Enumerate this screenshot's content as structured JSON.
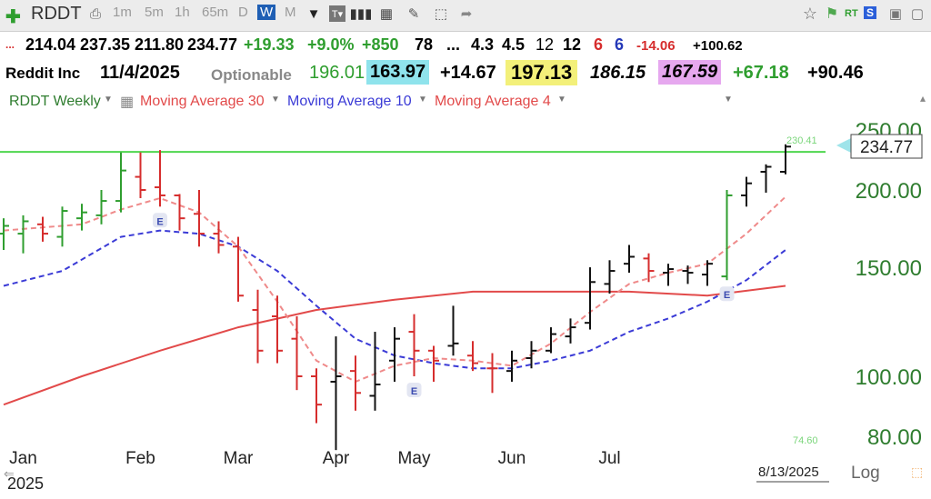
{
  "toolbar": {
    "symbol": "RDDT",
    "intervals": [
      "1m",
      "5m",
      "1h",
      "65m",
      "D",
      "W",
      "M"
    ],
    "active_interval": "W",
    "rt_label": "RT",
    "s_label": "S"
  },
  "quote": {
    "open": "214.04",
    "high": "237.35",
    "low": "211.80",
    "close": "234.77",
    "change": "+19.33",
    "change_pct": "+9.0%",
    "f1": "+850",
    "f2": "78",
    "f3": "...",
    "f4": "4.3",
    "f5": "4.5",
    "f6": "12",
    "f7": "12",
    "f8": "6",
    "f9": "6",
    "f10": "-14.06",
    "f11": "+100.62",
    "dots": "..."
  },
  "info": {
    "name": "Reddit Inc",
    "date": "11/4/2025",
    "optionable": "Optionable",
    "v1": "196.01",
    "v2": "163.97",
    "v3": "+14.67",
    "v4": "197.13",
    "v5": "186.15",
    "v6": "167.59",
    "v7": "+67.18",
    "v8": "+90.46"
  },
  "legend": {
    "series": "RDDT Weekly",
    "ma30": "Moving Average 30",
    "ma10": "Moving Average 10",
    "ma4": "Moving Average 4"
  },
  "colors": {
    "up": "#2f9e2f",
    "down": "#d62d2d",
    "flat": "#111111",
    "ma30": "#e24a4a",
    "ma10": "#3b3bd6",
    "ma4": "#ef8a8a",
    "axis_text": "#2f7d2f",
    "hline": "#4fd64f"
  },
  "chart_data": {
    "type": "line",
    "title": "RDDT Weekly",
    "y_scale": "log",
    "ylim": [
      76,
      270
    ],
    "y_ticks": [
      "250.00",
      "200.00",
      "150.00",
      "100.00",
      "80.00"
    ],
    "x_ticks": [
      "Jan",
      "Feb",
      "Mar",
      "Apr",
      "May",
      "Jun",
      "Jul"
    ],
    "year_label": "2025",
    "last_price_label": "234.77",
    "hline_label": "230.41",
    "hline_value": 230.41,
    "low_label": "74.60",
    "scale_label": "Log",
    "date_label": "8/13/2025",
    "earnings_marker": "E",
    "earnings_weeks": [
      8,
      21,
      37
    ],
    "bars": [
      {
        "w": 0,
        "o": 170,
        "h": 180,
        "l": 160,
        "c": 175,
        "d": "up"
      },
      {
        "w": 1,
        "o": 170,
        "h": 182,
        "l": 158,
        "c": 178,
        "d": "up"
      },
      {
        "w": 2,
        "o": 176,
        "h": 181,
        "l": 165,
        "c": 170,
        "d": "down"
      },
      {
        "w": 3,
        "o": 168,
        "h": 188,
        "l": 162,
        "c": 185,
        "d": "up"
      },
      {
        "w": 4,
        "o": 180,
        "h": 190,
        "l": 172,
        "c": 184,
        "d": "up"
      },
      {
        "w": 5,
        "o": 182,
        "h": 200,
        "l": 176,
        "c": 192,
        "d": "up"
      },
      {
        "w": 6,
        "o": 192,
        "h": 230,
        "l": 184,
        "c": 215,
        "d": "up"
      },
      {
        "w": 7,
        "o": 210,
        "h": 230,
        "l": 194,
        "c": 200,
        "d": "down"
      },
      {
        "w": 8,
        "o": 202,
        "h": 232,
        "l": 188,
        "c": 196,
        "d": "down"
      },
      {
        "w": 9,
        "o": 196,
        "h": 197,
        "l": 172,
        "c": 180,
        "d": "down"
      },
      {
        "w": 10,
        "o": 183,
        "h": 200,
        "l": 162,
        "c": 170,
        "d": "down"
      },
      {
        "w": 11,
        "o": 170,
        "h": 178,
        "l": 158,
        "c": 163,
        "d": "down"
      },
      {
        "w": 12,
        "o": 162,
        "h": 168,
        "l": 132,
        "c": 135,
        "d": "down"
      },
      {
        "w": 13,
        "o": 128,
        "h": 138,
        "l": 105,
        "c": 110,
        "d": "down"
      },
      {
        "w": 14,
        "o": 125,
        "h": 135,
        "l": 105,
        "c": 110,
        "d": "down"
      },
      {
        "w": 15,
        "o": 115,
        "h": 125,
        "l": 95,
        "c": 100,
        "d": "down"
      },
      {
        "w": 16,
        "o": 100,
        "h": 103,
        "l": 84,
        "c": 90,
        "d": "down"
      },
      {
        "w": 17,
        "o": 98,
        "h": 116,
        "l": 76,
        "c": 100,
        "d": "flat"
      },
      {
        "w": 18,
        "o": 102,
        "h": 108,
        "l": 88,
        "c": 94,
        "d": "down"
      },
      {
        "w": 19,
        "o": 93,
        "h": 118,
        "l": 88,
        "c": 97,
        "d": "flat"
      },
      {
        "w": 20,
        "o": 106,
        "h": 120,
        "l": 98,
        "c": 115,
        "d": "flat"
      },
      {
        "w": 21,
        "o": 118,
        "h": 126,
        "l": 100,
        "c": 110,
        "d": "down"
      },
      {
        "w": 22,
        "o": 110,
        "h": 112,
        "l": 98,
        "c": 106,
        "d": "down"
      },
      {
        "w": 23,
        "o": 112,
        "h": 130,
        "l": 108,
        "c": 113,
        "d": "flat"
      },
      {
        "w": 24,
        "o": 108,
        "h": 114,
        "l": 102,
        "c": 105,
        "d": "down"
      },
      {
        "w": 25,
        "o": 103,
        "h": 109,
        "l": 94,
        "c": 103,
        "d": "down"
      },
      {
        "w": 26,
        "o": 102,
        "h": 110,
        "l": 98,
        "c": 106,
        "d": "flat"
      },
      {
        "w": 27,
        "o": 107,
        "h": 114,
        "l": 103,
        "c": 110,
        "d": "flat"
      },
      {
        "w": 28,
        "o": 110,
        "h": 120,
        "l": 109,
        "c": 117,
        "d": "flat"
      },
      {
        "w": 29,
        "o": 116,
        "h": 124,
        "l": 113,
        "c": 120,
        "d": "flat"
      },
      {
        "w": 30,
        "o": 122,
        "h": 150,
        "l": 119,
        "c": 142,
        "d": "flat"
      },
      {
        "w": 31,
        "o": 141,
        "h": 154,
        "l": 136,
        "c": 148,
        "d": "flat"
      },
      {
        "w": 32,
        "o": 152,
        "h": 163,
        "l": 147,
        "c": 156,
        "d": "flat"
      },
      {
        "w": 33,
        "o": 155,
        "h": 158,
        "l": 142,
        "c": 148,
        "d": "down"
      },
      {
        "w": 34,
        "o": 147,
        "h": 152,
        "l": 140,
        "c": 149,
        "d": "flat"
      },
      {
        "w": 35,
        "o": 148,
        "h": 151,
        "l": 141,
        "c": 147,
        "d": "flat"
      },
      {
        "w": 36,
        "o": 146,
        "h": 154,
        "l": 140,
        "c": 152,
        "d": "flat"
      },
      {
        "w": 37,
        "o": 145,
        "h": 200,
        "l": 143,
        "c": 196,
        "d": "up"
      },
      {
        "w": 38,
        "o": 196,
        "h": 210,
        "l": 188,
        "c": 205,
        "d": "flat"
      },
      {
        "w": 39,
        "o": 214,
        "h": 220,
        "l": 198,
        "c": 218,
        "d": "flat"
      },
      {
        "w": 40,
        "o": 214,
        "h": 237,
        "l": 212,
        "c": 235,
        "d": "flat"
      }
    ],
    "ma30": [
      [
        0,
        90
      ],
      [
        4,
        100
      ],
      [
        8,
        110
      ],
      [
        12,
        120
      ],
      [
        16,
        128
      ],
      [
        20,
        133
      ],
      [
        24,
        137
      ],
      [
        28,
        137
      ],
      [
        32,
        137
      ],
      [
        36,
        135
      ],
      [
        40,
        140
      ]
    ],
    "ma10": [
      [
        0,
        140
      ],
      [
        3,
        148
      ],
      [
        6,
        168
      ],
      [
        8,
        172
      ],
      [
        10,
        170
      ],
      [
        12,
        162
      ],
      [
        14,
        148
      ],
      [
        16,
        130
      ],
      [
        18,
        115
      ],
      [
        20,
        108
      ],
      [
        22,
        105
      ],
      [
        24,
        103
      ],
      [
        26,
        103
      ],
      [
        28,
        106
      ],
      [
        30,
        110
      ],
      [
        32,
        118
      ],
      [
        34,
        124
      ],
      [
        36,
        132
      ],
      [
        38,
        143
      ],
      [
        40,
        160
      ]
    ],
    "ma4": [
      [
        0,
        172
      ],
      [
        2,
        174
      ],
      [
        4,
        176
      ],
      [
        6,
        186
      ],
      [
        8,
        194
      ],
      [
        10,
        184
      ],
      [
        12,
        162
      ],
      [
        14,
        132
      ],
      [
        16,
        106
      ],
      [
        18,
        98
      ],
      [
        20,
        104
      ],
      [
        22,
        107
      ],
      [
        24,
        106
      ],
      [
        26,
        104
      ],
      [
        28,
        113
      ],
      [
        30,
        127
      ],
      [
        32,
        141
      ],
      [
        34,
        147
      ],
      [
        36,
        152
      ],
      [
        38,
        170
      ],
      [
        40,
        195
      ]
    ]
  }
}
